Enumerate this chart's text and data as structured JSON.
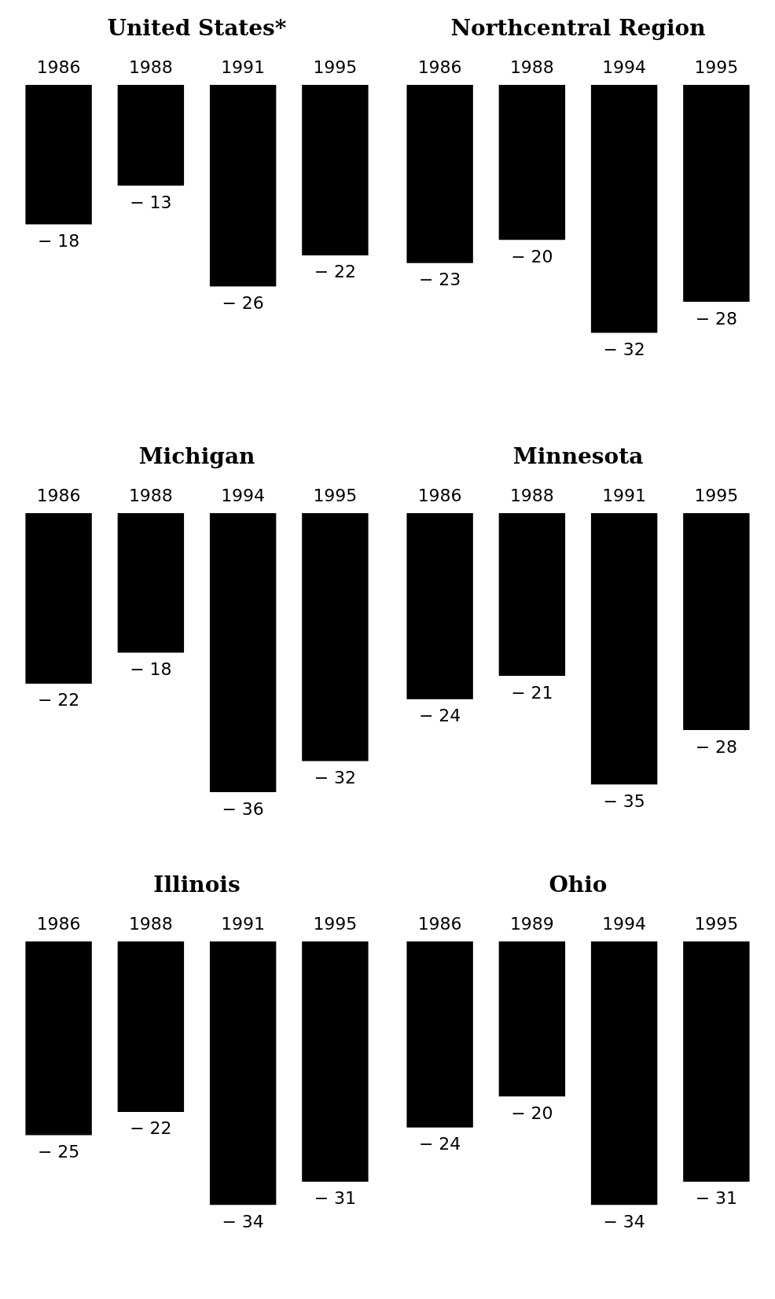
{
  "chart_data": [
    {
      "type": "bar",
      "title": "United States*",
      "categories": [
        "1986",
        "1988",
        "1991",
        "1995"
      ],
      "values": [
        -18,
        -13,
        -26,
        -22
      ],
      "value_labels": [
        "− 18",
        "− 13",
        "− 26",
        "− 22"
      ],
      "color": "#000000"
    },
    {
      "type": "bar",
      "title": "Northcentral Region",
      "categories": [
        "1986",
        "1988",
        "1994",
        "1995"
      ],
      "values": [
        -23,
        -20,
        -32,
        -28
      ],
      "value_labels": [
        "− 23",
        "− 20",
        "− 32",
        "− 28"
      ],
      "color": "#000000"
    },
    {
      "type": "bar",
      "title": "Michigan",
      "categories": [
        "1986",
        "1988",
        "1994",
        "1995"
      ],
      "values": [
        -22,
        -18,
        -36,
        -32
      ],
      "value_labels": [
        "− 22",
        "− 18",
        "− 36",
        "− 32"
      ],
      "color": "#000000"
    },
    {
      "type": "bar",
      "title": "Minnesota",
      "categories": [
        "1986",
        "1988",
        "1991",
        "1995"
      ],
      "values": [
        -24,
        -21,
        -35,
        -28
      ],
      "value_labels": [
        "− 24",
        "− 21",
        "− 35",
        "− 28"
      ],
      "color": "#000000"
    },
    {
      "type": "bar",
      "title": "Illinois",
      "categories": [
        "1986",
        "1988",
        "1991",
        "1995"
      ],
      "values": [
        -25,
        -22,
        -34,
        -31
      ],
      "value_labels": [
        "− 25",
        "− 22",
        "− 34",
        "− 31"
      ],
      "color": "#000000"
    },
    {
      "type": "bar",
      "title": "Ohio",
      "categories": [
        "1986",
        "1989",
        "1994",
        "1995"
      ],
      "values": [
        -24,
        -20,
        -34,
        -31
      ],
      "value_labels": [
        "− 24",
        "− 20",
        "− 34",
        "− 31"
      ],
      "color": "#000000"
    }
  ]
}
